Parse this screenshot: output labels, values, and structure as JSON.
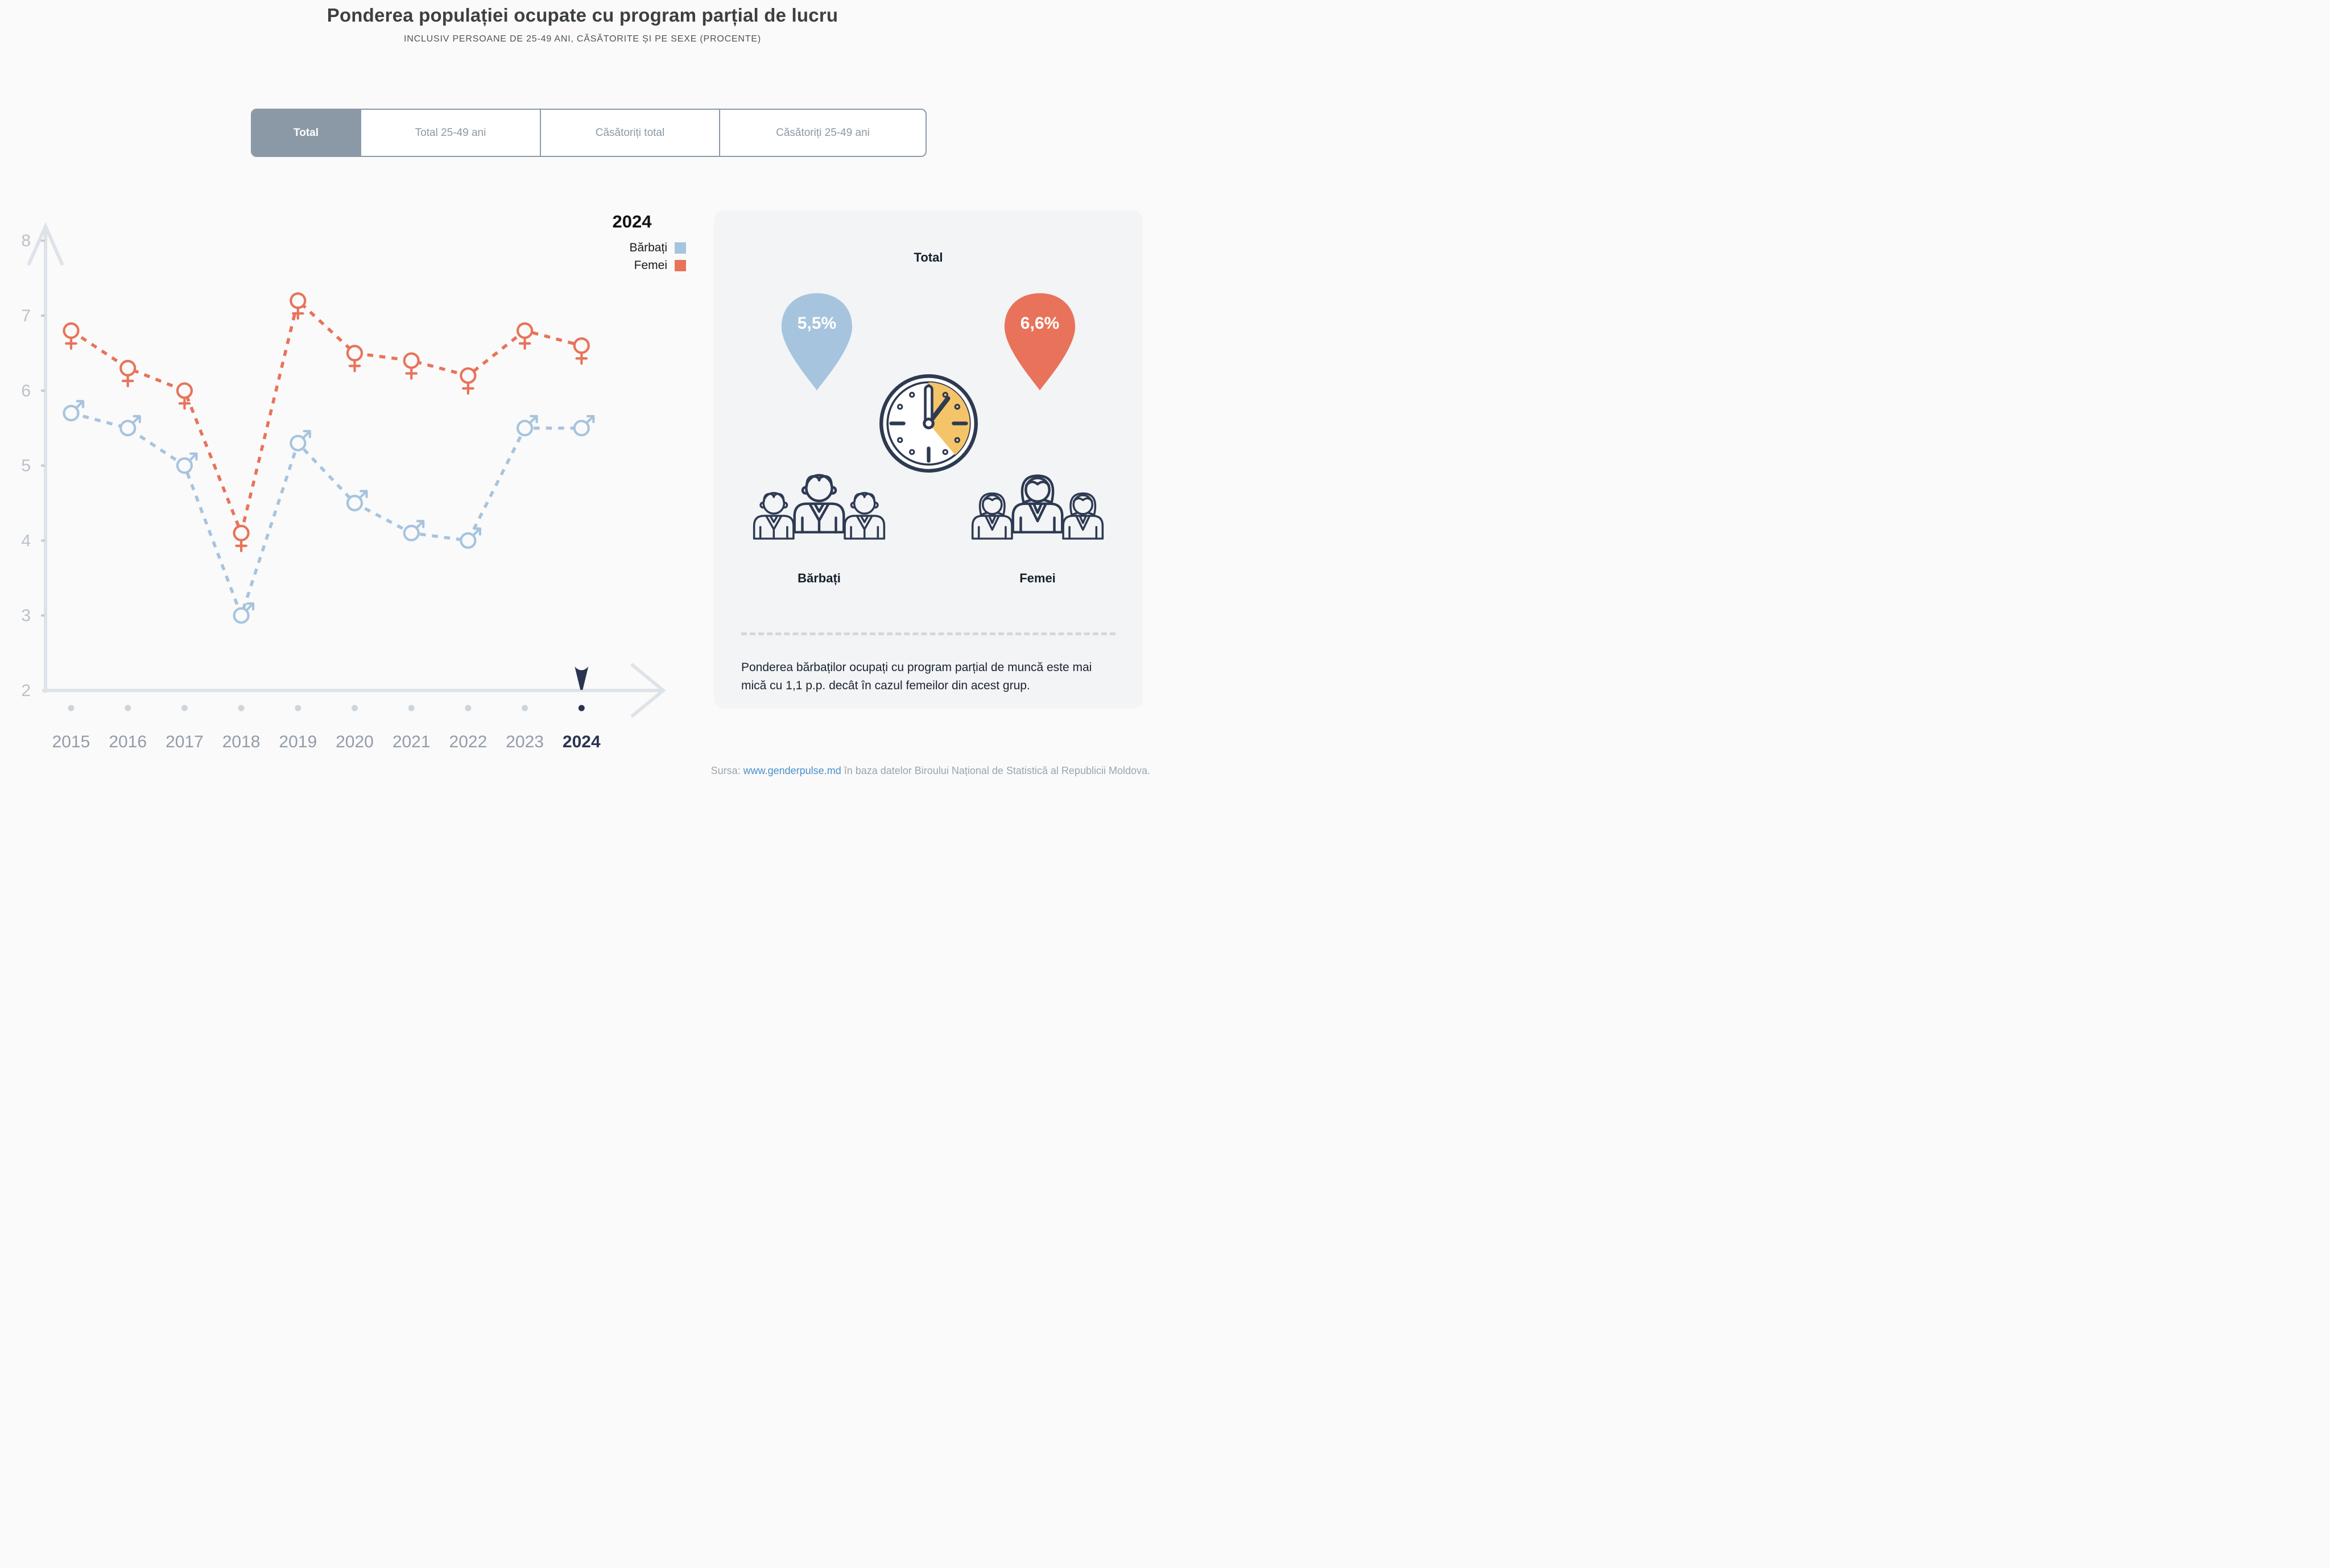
{
  "header": {
    "title": "Ponderea populației ocupate cu program parțial de lucru",
    "subtitle": "INCLUSIV PERSOANE DE 25-49 ANI, CĂSĂTORITE ȘI PE SEXE (PROCENTE)"
  },
  "tabs": [
    {
      "label": "Total",
      "active": true
    },
    {
      "label": "Total 25-49 ani",
      "active": false
    },
    {
      "label": "Căsătoriți total",
      "active": false
    },
    {
      "label": "Căsătoriți 25-49 ani",
      "active": false
    }
  ],
  "legend": {
    "year": "2024",
    "items": [
      {
        "label": "Bărbați",
        "color": "#a7c4de"
      },
      {
        "label": "Femei",
        "color": "#e8735a"
      }
    ]
  },
  "chart_data": {
    "type": "line",
    "title": "Ponderea populației ocupate cu program parțial de lucru",
    "x": [
      2015,
      2016,
      2017,
      2018,
      2019,
      2020,
      2021,
      2022,
      2023,
      2024
    ],
    "series": [
      {
        "name": "Bărbați",
        "color": "#a7c4de",
        "marker": "male",
        "values": [
          5.7,
          5.5,
          5.0,
          3.0,
          5.3,
          4.5,
          4.1,
          4.0,
          5.5,
          5.5
        ]
      },
      {
        "name": "Femei",
        "color": "#e8735a",
        "marker": "female",
        "values": [
          6.8,
          6.3,
          6.0,
          4.1,
          7.2,
          6.5,
          6.4,
          6.2,
          6.8,
          6.6
        ]
      }
    ],
    "ylim": [
      2,
      8
    ],
    "yticks": [
      2,
      3,
      4,
      5,
      6,
      7,
      8
    ],
    "line_style": "dashed",
    "grid": false,
    "legend_position": "top-right",
    "highlight_x": 2024
  },
  "panel": {
    "title": "Total",
    "male": {
      "value": "5,5%",
      "label": "Bărbați",
      "color": "#a7c4de"
    },
    "female": {
      "value": "6,6%",
      "label": "Femei",
      "color": "#e8735a"
    },
    "clock_accent": "#f5c469",
    "icon_color": "#2e3a52",
    "note": "Ponderea bărbaților ocupați cu program parțial de muncă este mai mică cu 1,1 p.p. decât în cazul femeilor din acest grup."
  },
  "footer": {
    "prefix": "Sursa: ",
    "link": "www.genderpulse.md",
    "suffix": " în baza datelor Biroului Național de Statistică al Republicii Moldova."
  }
}
